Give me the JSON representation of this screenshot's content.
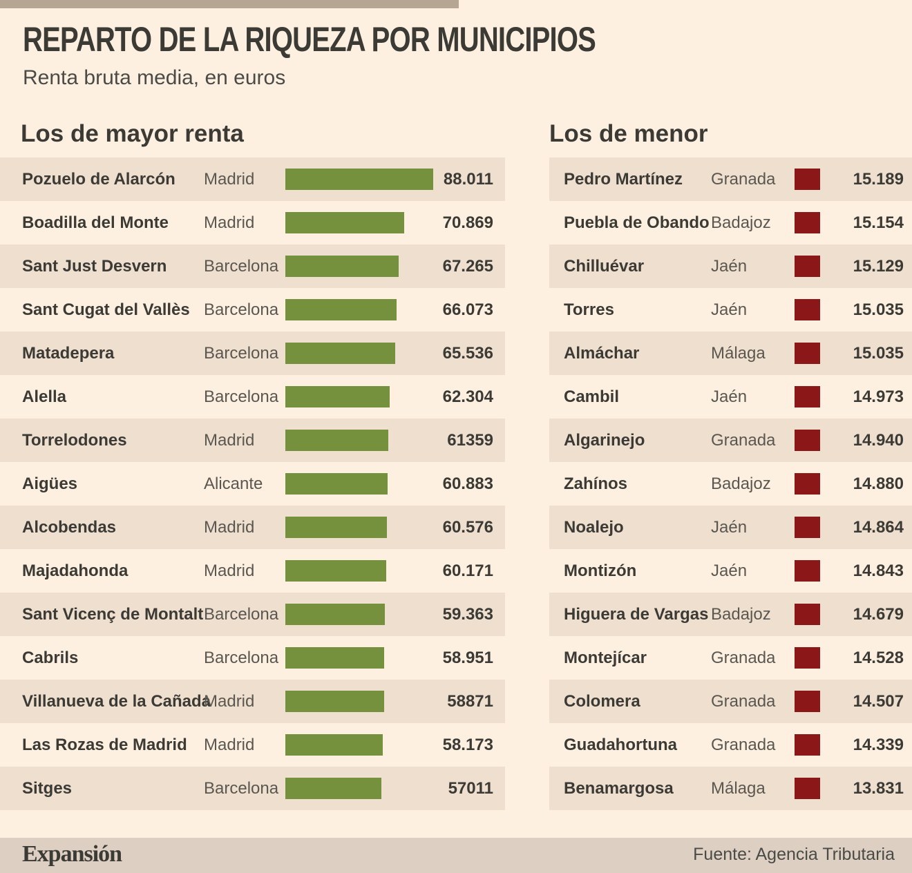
{
  "title": "REPARTO DE LA RIQUEZA POR MUNICIPIOS",
  "subtitle": "Renta bruta media, en euros",
  "footer": {
    "logo": "Expansión",
    "source": "Fuente: Agencia Tributaria"
  },
  "colors": {
    "background": "#fdf0e0",
    "row_shade": "#efdfcf",
    "high_bar": "#76913e",
    "low_bar": "#8c1718",
    "footer": "#ddd0c3"
  },
  "chart_data": [
    {
      "type": "bar",
      "title": "Los de mayor renta",
      "categories": [
        "Pozuelo de Alarcón",
        "Boadilla del Monte",
        "Sant Just Desvern",
        "Sant Cugat del Vallès",
        "Matadepera",
        "Alella",
        "Torrelodones",
        "Aigües",
        "Alcobendas",
        "Majadahonda",
        "Sant Vicenç de Montalt",
        "Cabrils",
        "Villanueva de la Cañada",
        "Las Rozas de Madrid",
        "Sitges"
      ],
      "provinces": [
        "Madrid",
        "Madrid",
        "Barcelona",
        "Barcelona",
        "Barcelona",
        "Barcelona",
        "Madrid",
        "Alicante",
        "Madrid",
        "Madrid",
        "Barcelona",
        "Barcelona",
        "Madrid",
        "Madrid",
        "Barcelona"
      ],
      "labels": [
        "88.011",
        "70.869",
        "67.265",
        "66.073",
        "65.536",
        "62.304",
        "61359",
        "60.883",
        "60.576",
        "60.171",
        "59.363",
        "58.951",
        "58871",
        "58.173",
        "57011"
      ],
      "values": [
        88011,
        70869,
        67265,
        66073,
        65536,
        62304,
        61359,
        60883,
        60576,
        60171,
        59363,
        58951,
        58871,
        58173,
        57011
      ],
      "xlim": [
        0,
        88011
      ]
    },
    {
      "type": "bar",
      "title": "Los de menor",
      "categories": [
        "Pedro Martínez",
        "Puebla de Obando",
        "Chilluévar",
        "Torres",
        "Almáchar",
        "Cambil",
        "Algarinejo",
        "Zahínos",
        "Noalejo",
        "Montizón",
        "Higuera de Vargas",
        "Montejícar",
        "Colomera",
        "Guadahortuna",
        "Benamargosa"
      ],
      "provinces": [
        "Granada",
        "Badajoz",
        "Jaén",
        "Jaén",
        "Málaga",
        "Jaén",
        "Granada",
        "Badajoz",
        "Jaén",
        "Jaén",
        "Badajoz",
        "Granada",
        "Granada",
        "Granada",
        "Málaga"
      ],
      "labels": [
        "15.189",
        "15.154",
        "15.129",
        "15.035",
        "15.035",
        "14.973",
        "14.940",
        "14.880",
        "14.864",
        "14.843",
        "14.679",
        "14.528",
        "14.507",
        "14.339",
        "13.831"
      ],
      "values": [
        15189,
        15154,
        15129,
        15035,
        15035,
        14973,
        14940,
        14880,
        14864,
        14843,
        14679,
        14528,
        14507,
        14339,
        13831
      ]
    }
  ]
}
